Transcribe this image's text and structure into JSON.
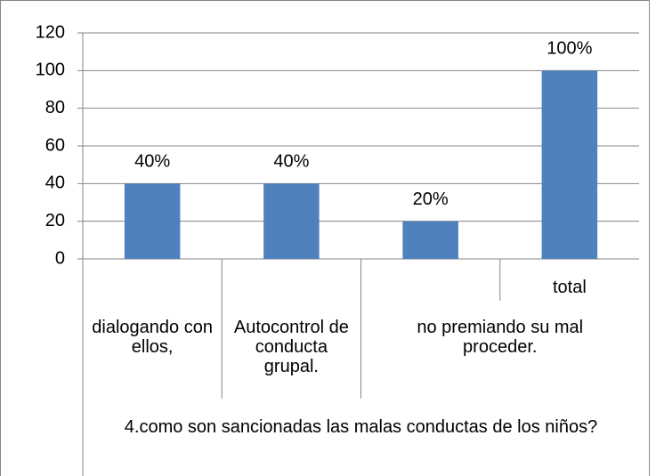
{
  "chart_data": {
    "type": "bar",
    "categories": [
      null,
      null,
      null,
      "total"
    ],
    "category_groups": [
      {
        "label": "dialogando con ellos,",
        "span": 1
      },
      {
        "label": "Autocontrol de conducta grupal.",
        "span": 1
      },
      {
        "label": "no premiando su mal proceder.",
        "span": 2
      }
    ],
    "x_label": "4.como son sancionadas  las malas conductas de los niños?",
    "values": [
      40,
      40,
      20,
      100
    ],
    "value_labels": [
      "40%",
      "40%",
      "20%",
      "100%"
    ],
    "color": "#4f81bd",
    "ylim": [
      0,
      120
    ],
    "yticks": [
      0,
      20,
      40,
      60,
      80,
      100,
      120
    ],
    "grid": true
  }
}
